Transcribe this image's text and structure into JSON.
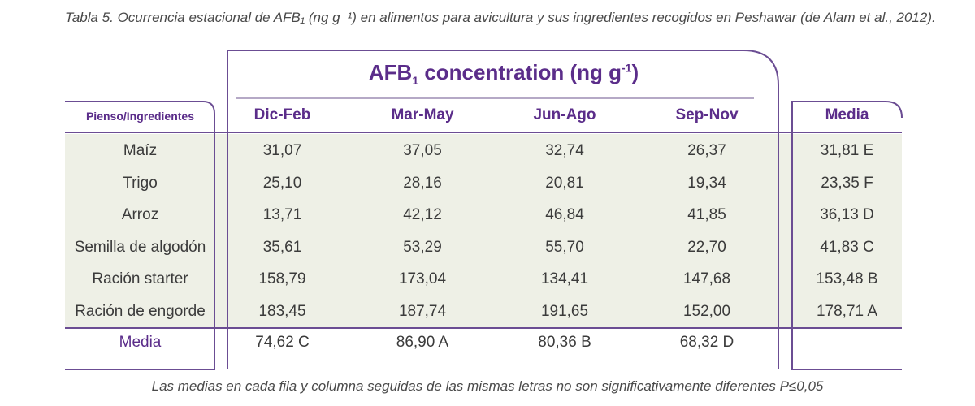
{
  "caption": "Tabla 5. Ocurrencia estacional de AFB₁ (ng g⁻¹) en alimentos para avicultura y sus ingredientes recogidos en Peshawar (de Alam et al., 2012).",
  "title": {
    "main": "AFB",
    "sub": "1",
    "rest": " concentration (ng g",
    "sup": "-1",
    "end": ")"
  },
  "headers": {
    "ingredient": "Pienso/Ingredientes",
    "seasons": [
      "Dic-Feb",
      "Mar-May",
      "Jun-Ago",
      "Sep-Nov"
    ],
    "mean": "Media"
  },
  "rows": [
    {
      "name": "Maíz",
      "values": [
        "31,07",
        "37,05",
        "32,74",
        "26,37"
      ],
      "mean": "31,81 E"
    },
    {
      "name": "Trigo",
      "values": [
        "25,10",
        "28,16",
        "20,81",
        "19,34"
      ],
      "mean": "23,35 F"
    },
    {
      "name": "Arroz",
      "values": [
        "13,71",
        "42,12",
        "46,84",
        "41,85"
      ],
      "mean": "36,13 D"
    },
    {
      "name": "Semilla de algodón",
      "values": [
        "35,61",
        "53,29",
        "55,70",
        "22,70"
      ],
      "mean": "41,83 C"
    },
    {
      "name": "Ración starter",
      "values": [
        "158,79",
        "173,04",
        "134,41",
        "147,68"
      ],
      "mean": "153,48 B"
    },
    {
      "name": "Ración de engorde",
      "values": [
        "183,45",
        "187,74",
        "191,65",
        "152,00"
      ],
      "mean": "178,71 A"
    }
  ],
  "mean_row": {
    "label": "Media",
    "values": [
      "74,62 C",
      "86,90 A",
      "80,36 B",
      "68,32 D"
    ],
    "mean": ""
  },
  "footnote": "Las medias en cada fila y columna seguidas de las mismas letras no son significativamente diferentes P≤0,05",
  "colors": {
    "accent": "#5b2d8a",
    "border": "#6b4d93",
    "shade": "#eef0e6"
  }
}
